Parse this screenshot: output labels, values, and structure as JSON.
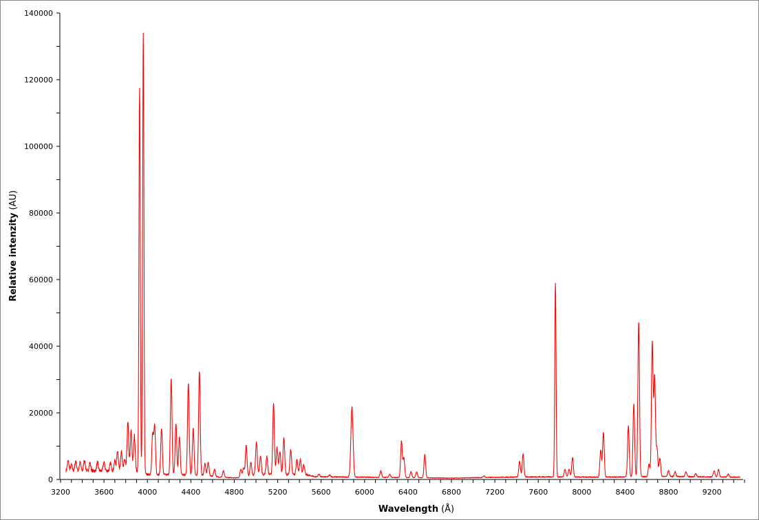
{
  "chart_data": {
    "type": "line",
    "title": "",
    "xlabel": "Wavelength",
    "xlabel_unit": "(Å)",
    "ylabel": "Relative intenzity",
    "ylabel_unit": "(AU)",
    "xlim": [
      3200,
      9500
    ],
    "ylim": [
      0,
      140000
    ],
    "x_ticks": [
      "3200",
      "3600",
      "4000",
      "4400",
      "4800",
      "5200",
      "5600",
      "6000",
      "6400",
      "6800",
      "7200",
      "7600",
      "8000",
      "8400",
      "8800",
      "9200"
    ],
    "y_ticks": [
      "0",
      "20000",
      "40000",
      "60000",
      "80000",
      "100000",
      "120000",
      "140000"
    ],
    "grid": false,
    "legend": "none",
    "line_color": "#ff0000",
    "series": [
      {
        "x_range": [
          3250,
          9460
        ],
        "baseline": [
          [
            3250,
            2600
          ],
          [
            3700,
            2600
          ],
          [
            3850,
            3000
          ],
          [
            4000,
            1500
          ],
          [
            4500,
            1300
          ],
          [
            4700,
            600
          ],
          [
            4850,
            500
          ],
          [
            5000,
            1500
          ],
          [
            5450,
            1500
          ],
          [
            5550,
            800
          ],
          [
            6000,
            700
          ],
          [
            6800,
            400
          ],
          [
            7300,
            700
          ],
          [
            7600,
            800
          ],
          [
            8100,
            700
          ],
          [
            8800,
            900
          ],
          [
            9460,
            700
          ]
        ],
        "peaks": [
          [
            3270,
            3000
          ],
          [
            3300,
            1800
          ],
          [
            3340,
            3000
          ],
          [
            3380,
            2500
          ],
          [
            3420,
            3200
          ],
          [
            3470,
            2400
          ],
          [
            3540,
            2500
          ],
          [
            3600,
            2600
          ],
          [
            3660,
            2300
          ],
          [
            3700,
            3000
          ],
          [
            3725,
            6000
          ],
          [
            3760,
            5500
          ],
          [
            3790,
            3000
          ],
          [
            3820,
            14000
          ],
          [
            3850,
            11500
          ],
          [
            3880,
            10500
          ],
          [
            3928,
            115000
          ],
          [
            3962,
            132000
          ],
          [
            4048,
            12000
          ],
          [
            4067,
            14500
          ],
          [
            4130,
            14000
          ],
          [
            4219,
            29000
          ],
          [
            4263,
            15500
          ],
          [
            4295,
            11500
          ],
          [
            4377,
            27500
          ],
          [
            4422,
            14000
          ],
          [
            4479,
            31000
          ],
          [
            4530,
            3500
          ],
          [
            4560,
            4000
          ],
          [
            4618,
            2200
          ],
          [
            4700,
            2000
          ],
          [
            4860,
            2500
          ],
          [
            4885,
            2800
          ],
          [
            4910,
            9500
          ],
          [
            4953,
            4000
          ],
          [
            5004,
            10000
          ],
          [
            5042,
            5500
          ],
          [
            5100,
            5500
          ],
          [
            5162,
            21500
          ],
          [
            5194,
            8000
          ],
          [
            5220,
            7000
          ],
          [
            5257,
            11000
          ],
          [
            5320,
            7500
          ],
          [
            5377,
            4500
          ],
          [
            5409,
            4500
          ],
          [
            5440,
            3000
          ],
          [
            5580,
            800
          ],
          [
            5680,
            600
          ],
          [
            5884,
            21000
          ],
          [
            6150,
            2000
          ],
          [
            6232,
            1000
          ],
          [
            6340,
            11000
          ],
          [
            6362,
            6000
          ],
          [
            6428,
            1800
          ],
          [
            6480,
            1800
          ],
          [
            6555,
            7000
          ],
          [
            7100,
            500
          ],
          [
            7428,
            4700
          ],
          [
            7460,
            7000
          ],
          [
            7758,
            58000
          ],
          [
            7846,
            2300
          ],
          [
            7884,
            2300
          ],
          [
            7916,
            5800
          ],
          [
            8175,
            8100
          ],
          [
            8200,
            13500
          ],
          [
            8430,
            15300
          ],
          [
            8480,
            21800
          ],
          [
            8525,
            46500
          ],
          [
            8620,
            3800
          ],
          [
            8650,
            40300
          ],
          [
            8672,
            30000
          ],
          [
            8694,
            8500
          ],
          [
            8720,
            5500
          ],
          [
            8800,
            1800
          ],
          [
            8860,
            1500
          ],
          [
            8960,
            1500
          ],
          [
            9050,
            900
          ],
          [
            9220,
            1800
          ],
          [
            9260,
            2200
          ],
          [
            9350,
            900
          ]
        ]
      }
    ]
  }
}
